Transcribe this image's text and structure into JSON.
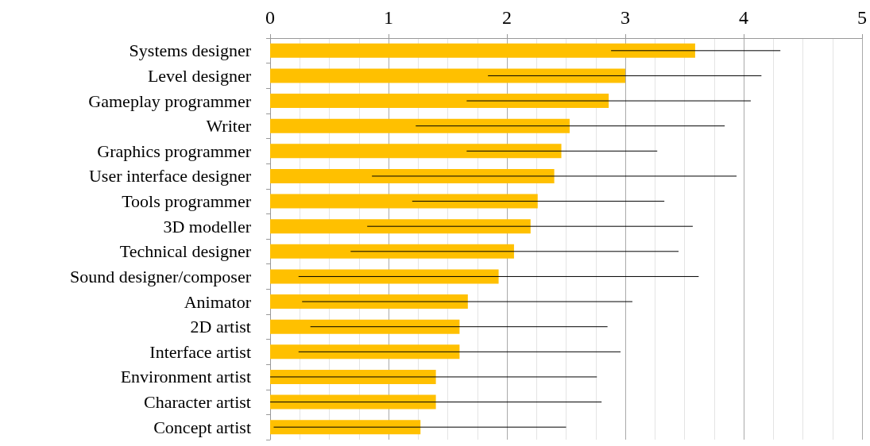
{
  "chart_data": {
    "type": "bar",
    "orientation": "horizontal",
    "categories": [
      "Systems designer",
      "Level designer",
      "Gameplay programmer",
      "Writer",
      "Graphics programmer",
      "User interface designer",
      "Tools programmer",
      "3D modeller",
      "Technical designer",
      "Sound designer/composer",
      "Animator",
      "2D artist",
      "Interface artist",
      "Environment artist",
      "Character artist",
      "Concept artist"
    ],
    "values": [
      3.59,
      3.0,
      2.86,
      2.53,
      2.46,
      2.4,
      2.26,
      2.2,
      2.06,
      1.93,
      1.67,
      1.6,
      1.6,
      1.4,
      1.4,
      1.27
    ],
    "errors": [
      [
        2.88,
        4.31
      ],
      [
        1.84,
        4.15
      ],
      [
        1.66,
        4.06
      ],
      [
        1.23,
        3.84
      ],
      [
        1.66,
        3.27
      ],
      [
        0.86,
        3.94
      ],
      [
        1.2,
        3.33
      ],
      [
        0.82,
        3.57
      ],
      [
        0.68,
        3.45
      ],
      [
        0.24,
        3.62
      ],
      [
        0.27,
        3.06
      ],
      [
        0.34,
        2.85
      ],
      [
        0.24,
        2.96
      ],
      [
        0.0,
        2.76
      ],
      [
        0.0,
        2.8
      ],
      [
        0.03,
        2.5
      ]
    ],
    "color": "#ffc000",
    "xlim": [
      0,
      5
    ],
    "xticks": [
      0,
      1,
      2,
      3,
      4,
      5
    ],
    "grid": "x"
  }
}
